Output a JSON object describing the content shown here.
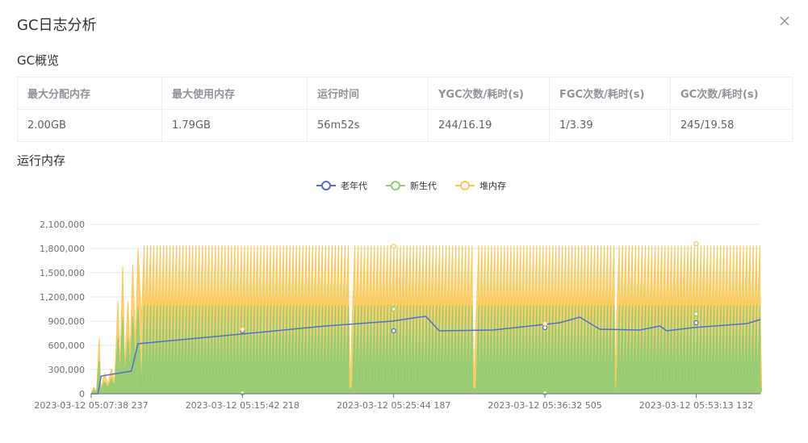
{
  "dialog": {
    "title": "GC日志分析",
    "close_icon": "close-icon"
  },
  "overview": {
    "section_title": "GC概览",
    "headers": [
      "最大分配内存",
      "最大使用内存",
      "运行时间",
      "YGC次数/耗时(s)",
      "FGC次数/耗时(s)",
      "GC次数/耗时(s)"
    ],
    "values": [
      "2.00GB",
      "1.79GB",
      "56m52s",
      "244/16.19",
      "1/3.39",
      "245/19.58"
    ]
  },
  "memory": {
    "section_title": "运行内存"
  },
  "chart_data": {
    "type": "line",
    "legend_position": "top-center",
    "grid": true,
    "ylim": [
      0,
      2100000
    ],
    "y_ticks": [
      0,
      300000,
      600000,
      900000,
      1200000,
      1500000,
      1800000,
      2100000
    ],
    "y_tick_labels": [
      "0",
      "300,000",
      "600,000",
      "900,000",
      "1,200,000",
      "1,500,000",
      "1,800,000",
      "2,100,000"
    ],
    "x_tick_labels": [
      "2023-03-12 05:07:38 237",
      "2023-03-12 05:15:42 218",
      "2023-03-12 05:25:44 187",
      "2023-03-12 05:36:32 505",
      "2023-03-12 05:53:13 132"
    ],
    "series": [
      {
        "name": "老年代",
        "color": "#5470c6",
        "style": "line",
        "points": [
          [
            0,
            0
          ],
          [
            0.01,
            0
          ],
          [
            0.015,
            220000
          ],
          [
            0.06,
            280000
          ],
          [
            0.07,
            620000
          ],
          [
            0.25,
            760000
          ],
          [
            0.35,
            840000
          ],
          [
            0.45,
            900000
          ],
          [
            0.49,
            950000
          ],
          [
            0.5,
            960000
          ],
          [
            0.52,
            780000
          ],
          [
            0.6,
            790000
          ],
          [
            0.7,
            880000
          ],
          [
            0.73,
            950000
          ],
          [
            0.76,
            800000
          ],
          [
            0.82,
            790000
          ],
          [
            0.85,
            840000
          ],
          [
            0.86,
            780000
          ],
          [
            0.9,
            820000
          ],
          [
            0.98,
            870000
          ],
          [
            1.0,
            920000
          ]
        ]
      },
      {
        "name": "新生代",
        "color": "#91cc75",
        "style": "sawtooth-area",
        "peak_range": [
          300000,
          1150000
        ]
      },
      {
        "name": "堆内存",
        "color": "#fac858",
        "style": "sawtooth-area",
        "peak_range": [
          300000,
          1850000
        ]
      }
    ]
  }
}
